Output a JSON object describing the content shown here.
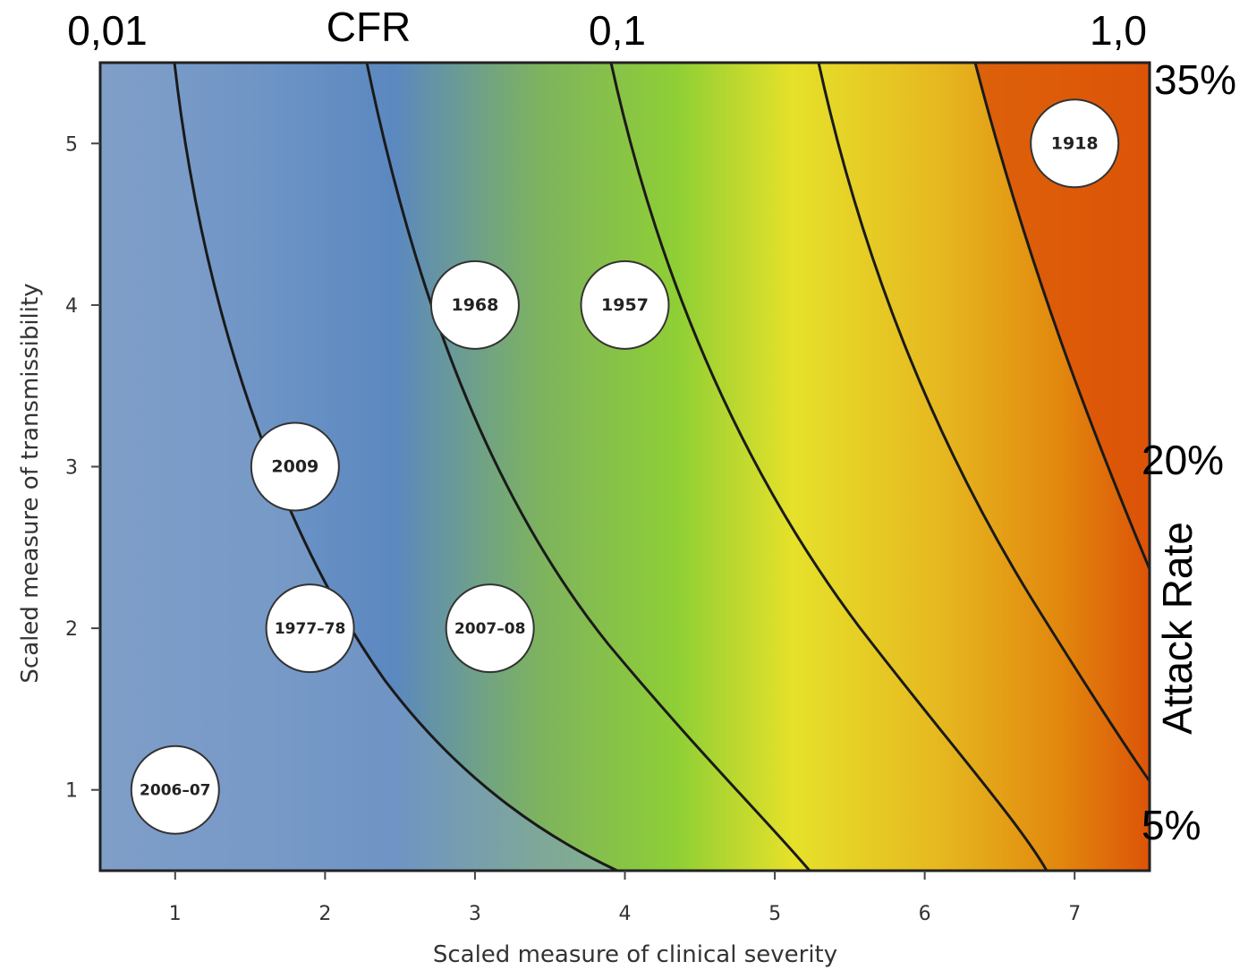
{
  "chart_data": {
    "type": "heatmap",
    "xlabel": "Scaled measure of clinical severity",
    "ylabel": "Scaled measure of transmissibility",
    "xlim": [
      0.5,
      7.5
    ],
    "ylim": [
      0.5,
      5.5
    ],
    "x_ticks": [
      "1",
      "2",
      "3",
      "4",
      "5",
      "6",
      "7"
    ],
    "y_ticks": [
      "1",
      "2",
      "3",
      "4",
      "5"
    ],
    "top_axis": {
      "title": "CFR",
      "labels": [
        "0,01",
        "0,1",
        "1,0"
      ]
    },
    "right_axis": {
      "title": "Attack Rate",
      "labels": [
        "35%",
        "20%",
        "5%"
      ]
    },
    "background_colors": [
      "#7f9ec8",
      "#5b88c0",
      "#88bb55",
      "#e6e12a",
      "#e79a12",
      "#dc5408"
    ],
    "points": [
      {
        "label": "2006–07",
        "x": 1.0,
        "y": 1.0
      },
      {
        "label": "1977–78",
        "x": 1.9,
        "y": 2.0
      },
      {
        "label": "2009",
        "x": 1.8,
        "y": 3.0
      },
      {
        "label": "2007–08",
        "x": 3.1,
        "y": 2.0
      },
      {
        "label": "1968",
        "x": 3.0,
        "y": 4.0
      },
      {
        "label": "1957",
        "x": 4.0,
        "y": 4.0
      },
      {
        "label": "1918",
        "x": 7.0,
        "y": 5.0
      }
    ]
  }
}
